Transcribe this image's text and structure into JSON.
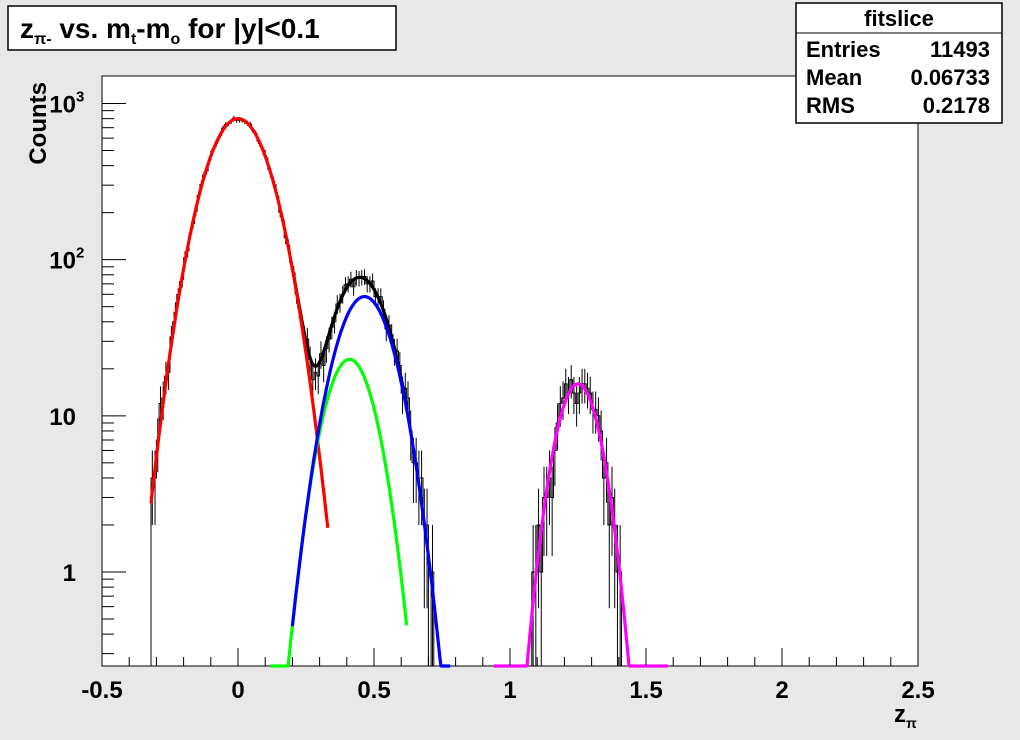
{
  "chart_data": {
    "type": "line",
    "title": {
      "main": "z",
      "sub": "π-",
      "mid": " vs. m",
      "sub2": "t",
      "mid2": "-m",
      "sub3": "o",
      "tail": " for |y|<0.1"
    },
    "xlabel": {
      "main": "z",
      "sub": "π"
    },
    "ylabel": "Counts",
    "xlim": [
      -0.5,
      2.5
    ],
    "ylim": [
      0.25,
      1500
    ],
    "yscale": "log",
    "grid": false,
    "x_ticks": [
      {
        "value": -0.5,
        "label": "-0.5"
      },
      {
        "value": 0,
        "label": "0"
      },
      {
        "value": 0.5,
        "label": "0.5"
      },
      {
        "value": 1,
        "label": "1"
      },
      {
        "value": 1.5,
        "label": "1.5"
      },
      {
        "value": 2,
        "label": "2"
      },
      {
        "value": 2.5,
        "label": "2.5"
      }
    ],
    "y_ticks": [
      {
        "value": 1,
        "label": "1",
        "sup": ""
      },
      {
        "value": 10,
        "label": "10",
        "sup": ""
      },
      {
        "value": 100,
        "label": "10",
        "sup": "2"
      },
      {
        "value": 1000,
        "label": "10",
        "sup": "3"
      }
    ],
    "stats": {
      "title": "fitslice",
      "rows": [
        {
          "label": "Entries",
          "value": "11493"
        },
        {
          "label": "Mean",
          "value": "0.06733"
        },
        {
          "label": "RMS",
          "value": "0.2178"
        }
      ]
    },
    "histogram_peaks": [
      {
        "mean": 0.0,
        "sigma": 0.095,
        "amp": 800,
        "lo": -0.32,
        "hi": 0.36
      },
      {
        "mean": 0.41,
        "sigma": 0.075,
        "amp": 23,
        "lo": 0.2,
        "hi": 0.78
      },
      {
        "mean": 0.465,
        "sigma": 0.085,
        "amp": 58,
        "lo": 0.2,
        "hi": 0.78
      },
      {
        "mean": 1.25,
        "sigma": 0.065,
        "amp": 16,
        "lo": 1.02,
        "hi": 1.48
      }
    ],
    "series": [
      {
        "color": "#000000",
        "components": [
          0,
          1,
          2
        ],
        "x_range": [
          0.2,
          0.62
        ]
      },
      {
        "color": "#ff0000",
        "components": [
          0
        ],
        "x_range": [
          -0.32,
          0.33
        ]
      },
      {
        "color": "#00ff00",
        "components": [
          1
        ],
        "x_range": [
          0.12,
          0.62
        ]
      },
      {
        "color": "#0000ff",
        "components": [
          2
        ],
        "x_range": [
          0.2,
          0.78
        ]
      },
      {
        "color": "#ff00ff",
        "components": [
          3
        ],
        "x_range": [
          0.94,
          1.58
        ]
      }
    ]
  }
}
